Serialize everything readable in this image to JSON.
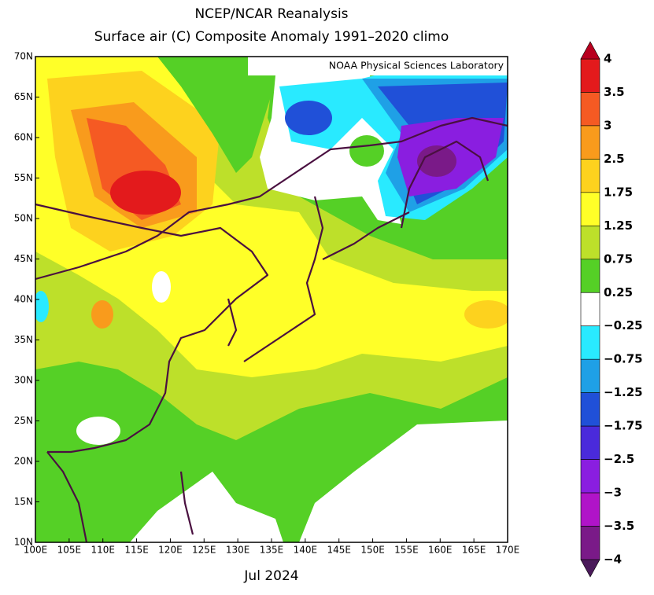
{
  "title": "NCEP/NCAR Reanalysis",
  "subtitle": "Surface air (C) Composite Anomaly 1991–2020 climo",
  "credit": "NOAA Physical Sciences Laboratory",
  "date": "Jul 2024",
  "axes": {
    "xlim": [
      100,
      170
    ],
    "ylim": [
      10,
      70
    ],
    "xticks": [
      {
        "value": 100,
        "label": "100E"
      },
      {
        "value": 105,
        "label": "105E"
      },
      {
        "value": 110,
        "label": "110E"
      },
      {
        "value": 115,
        "label": "115E"
      },
      {
        "value": 120,
        "label": "120E"
      },
      {
        "value": 125,
        "label": "125E"
      },
      {
        "value": 130,
        "label": "130E"
      },
      {
        "value": 135,
        "label": "135E"
      },
      {
        "value": 140,
        "label": "140E"
      },
      {
        "value": 145,
        "label": "145E"
      },
      {
        "value": 150,
        "label": "150E"
      },
      {
        "value": 155,
        "label": "155E"
      },
      {
        "value": 160,
        "label": "160E"
      },
      {
        "value": 165,
        "label": "165E"
      },
      {
        "value": 170,
        "label": "170E"
      }
    ],
    "yticks": [
      {
        "value": 10,
        "label": "10N"
      },
      {
        "value": 15,
        "label": "15N"
      },
      {
        "value": 20,
        "label": "20N"
      },
      {
        "value": 25,
        "label": "25N"
      },
      {
        "value": 30,
        "label": "30N"
      },
      {
        "value": 35,
        "label": "35N"
      },
      {
        "value": 40,
        "label": "40N"
      },
      {
        "value": 45,
        "label": "45N"
      },
      {
        "value": 50,
        "label": "50N"
      },
      {
        "value": 55,
        "label": "55N"
      },
      {
        "value": 60,
        "label": "60N"
      },
      {
        "value": 65,
        "label": "65N"
      },
      {
        "value": 70,
        "label": "70N"
      }
    ]
  },
  "colorbar": {
    "levels": [
      4,
      3.5,
      3,
      2.5,
      1.75,
      1.25,
      0.75,
      0.25,
      {
        "value": -0.25,
        "label": "−0.25"
      },
      {
        "value": -0.75,
        "label": "−0.75"
      },
      {
        "value": -1.25,
        "label": "−1.25"
      },
      {
        "value": -1.75,
        "label": "−1.75"
      },
      {
        "value": -2.5,
        "label": "−2.5"
      },
      {
        "value": -3,
        "label": "−3"
      },
      {
        "value": -3.5,
        "label": "−3.5"
      },
      {
        "value": -4,
        "label": "−4"
      }
    ],
    "colors": [
      "#e31a1c",
      "#f55a23",
      "#f99b1c",
      "#fdd21e",
      "#ffff28",
      "#bde02a",
      "#55d026",
      "#ffffff",
      "#29eaff",
      "#1fa0e6",
      "#2050d8",
      "#4a2adb",
      "#8a1ee0",
      "#b014c8",
      "#7a1a88"
    ],
    "top_color": "#b8001f",
    "bottom_color": "#4a1a5a"
  }
}
